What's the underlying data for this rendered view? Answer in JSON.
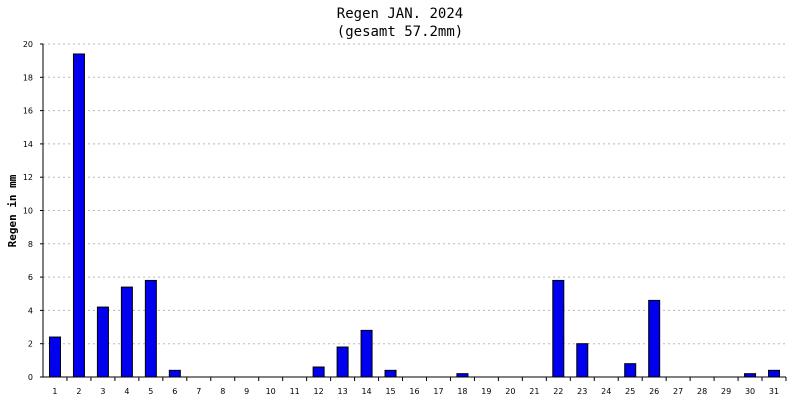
{
  "chart_data": {
    "type": "bar",
    "title": "Regen JAN. 2024",
    "subtitle": "(gesamt 57.2mm)",
    "xlabel": "",
    "ylabel": "Regen in mm",
    "ylim": [
      0,
      20
    ],
    "yticks": [
      0,
      2,
      4,
      6,
      8,
      10,
      12,
      14,
      16,
      18,
      20
    ],
    "grid": true,
    "categories": [
      "1",
      "2",
      "3",
      "4",
      "5",
      "6",
      "7",
      "8",
      "9",
      "10",
      "11",
      "12",
      "13",
      "14",
      "15",
      "16",
      "17",
      "18",
      "19",
      "20",
      "21",
      "22",
      "23",
      "24",
      "25",
      "26",
      "27",
      "28",
      "29",
      "30",
      "31"
    ],
    "values": [
      2.4,
      19.4,
      4.2,
      5.4,
      5.8,
      0.4,
      0,
      0,
      0,
      0,
      0,
      0.6,
      1.8,
      2.8,
      0.4,
      0,
      0,
      0.2,
      0,
      0,
      0,
      5.8,
      2.0,
      0,
      0.8,
      4.6,
      0,
      0,
      0,
      0.2,
      0.4
    ],
    "colors": {
      "bar": "#0000ee",
      "grid": "#b8b8b8",
      "axis": "#000000"
    }
  }
}
